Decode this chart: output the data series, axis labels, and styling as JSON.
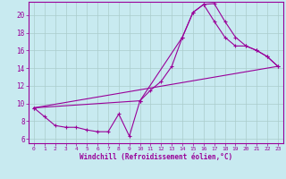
{
  "xlabel": "Windchill (Refroidissement éolien,°C)",
  "bg_color": "#c8eaf0",
  "line_color": "#990099",
  "grid_color": "#aacccc",
  "xlim": [
    -0.5,
    23.5
  ],
  "ylim": [
    5.5,
    21.5
  ],
  "xticks": [
    0,
    1,
    2,
    3,
    4,
    5,
    6,
    7,
    8,
    9,
    10,
    11,
    12,
    13,
    14,
    15,
    16,
    17,
    18,
    19,
    20,
    21,
    22,
    23
  ],
  "yticks": [
    6,
    8,
    10,
    12,
    14,
    16,
    18,
    20
  ],
  "curve1_x": [
    0,
    1,
    2,
    3,
    4,
    5,
    6,
    7,
    8,
    9,
    10,
    11,
    12,
    13,
    14,
    15,
    16,
    17,
    18,
    19,
    20,
    21,
    22,
    23
  ],
  "curve1_y": [
    9.5,
    8.5,
    7.5,
    7.3,
    7.3,
    7.0,
    6.8,
    6.8,
    8.8,
    6.3,
    10.3,
    11.5,
    12.5,
    14.2,
    17.5,
    20.3,
    21.2,
    21.3,
    19.3,
    17.5,
    16.5,
    16.0,
    15.3,
    14.2
  ],
  "curve2_x": [
    0,
    10,
    14,
    15,
    16,
    17,
    18,
    19,
    20,
    21,
    22,
    23
  ],
  "curve2_y": [
    9.5,
    10.3,
    17.5,
    20.3,
    21.2,
    19.3,
    17.5,
    16.5,
    16.5,
    16.0,
    15.3,
    14.2
  ],
  "curve3_x": [
    0,
    23
  ],
  "curve3_y": [
    9.5,
    14.2
  ]
}
